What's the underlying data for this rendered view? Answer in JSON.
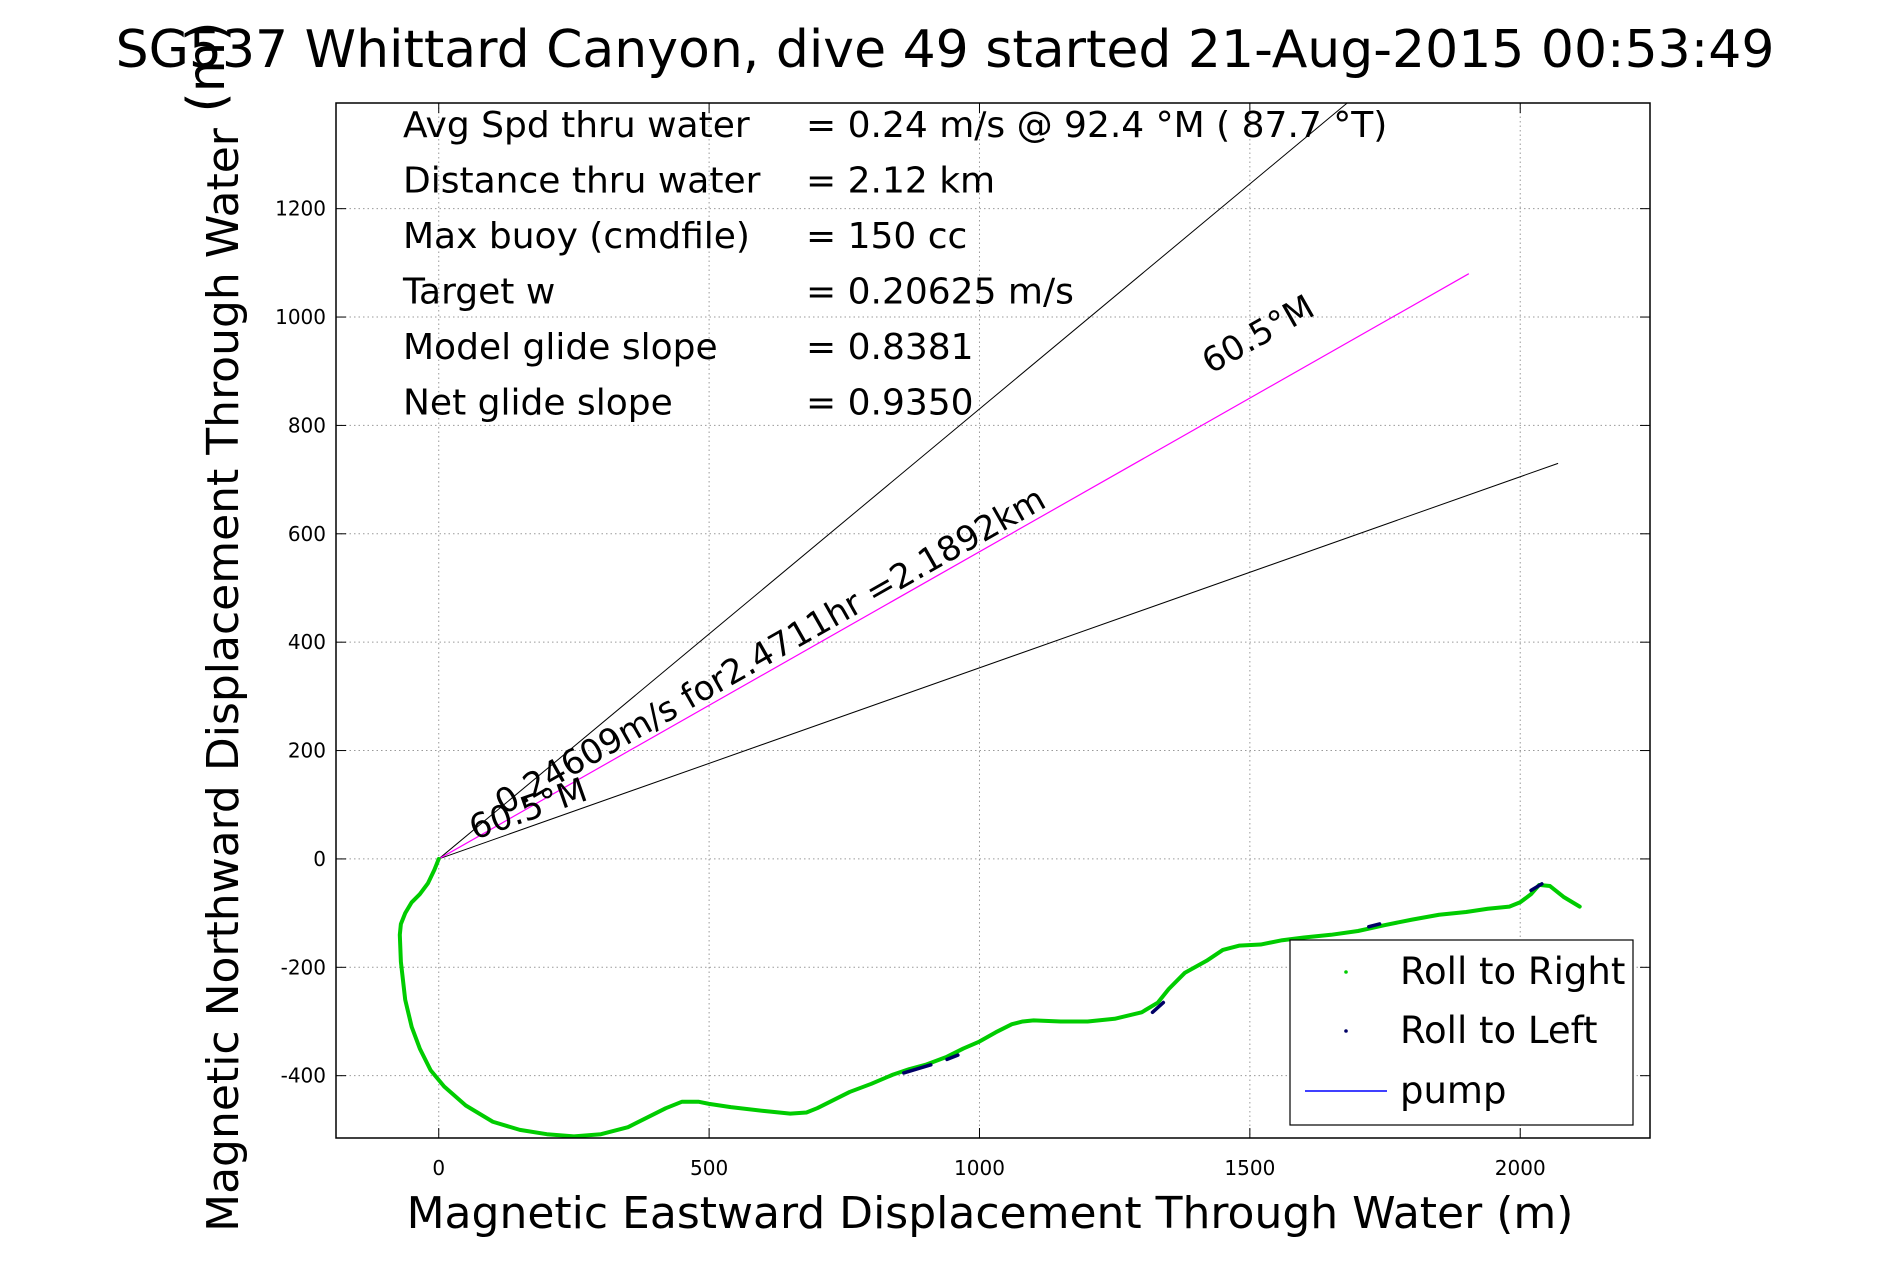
{
  "chart_data": {
    "type": "line",
    "title": "SG537 Whittard Canyon, dive 49 started 21-Aug-2015 00:53:49",
    "overlap_title_fragment": "(m)",
    "xlabel": "Magnetic Eastward Displacement Through Water (m)",
    "ylabel": "Magnetic Northward Displacement Through Water",
    "xlim": [
      -190,
      2240
    ],
    "ylim": [
      -515,
      1395
    ],
    "x_ticks": [
      0,
      500,
      1000,
      1500,
      2000
    ],
    "y_ticks": [
      -400,
      -200,
      0,
      200,
      400,
      600,
      800,
      1000,
      1200
    ],
    "x_tick_labels": [
      "0",
      "500",
      "1000",
      "1500",
      "2000"
    ],
    "y_tick_labels": [
      "-400",
      "-200",
      "0",
      "200",
      "400",
      "600",
      "800",
      "1000",
      "1200"
    ],
    "grid": true,
    "stats": [
      {
        "label": "Avg Spd thru water",
        "value": "=  0.24 m/s @  92.4 °M ( 87.7 °T)"
      },
      {
        "label": "Distance thru water",
        "value": "=  2.12 km"
      },
      {
        "label": "Max buoy (cmdfile)",
        "value": "= 150 cc"
      },
      {
        "label": "Target w",
        "value": "= 0.20625 m/s"
      },
      {
        "label": "Model glide slope",
        "value": "= 0.8381"
      },
      {
        "label": "Net glide slope",
        "value": "= 0.9350"
      }
    ],
    "annotations": {
      "heading_line_label": "0.24609m/s for2.4711hr =2.1892km",
      "cone_label_lower": "60.5°M",
      "cone_label_upper": "60.5°M"
    },
    "heading_line": {
      "x": [
        0,
        1905
      ],
      "y": [
        0,
        1080
      ],
      "color": "#ff00ff"
    },
    "cone_lines": [
      {
        "x": [
          0,
          1680
        ],
        "y": [
          0,
          1395
        ]
      },
      {
        "x": [
          0,
          2070
        ],
        "y": [
          0,
          730
        ]
      }
    ],
    "series": [
      {
        "name": "Roll to Right",
        "color": "#00cc00",
        "x": [
          0,
          -8,
          -20,
          -35,
          -50,
          -62,
          -70,
          -72,
          -70,
          -62,
          -50,
          -35,
          -15,
          10,
          50,
          100,
          150,
          200,
          250,
          300,
          350,
          390,
          420,
          450,
          480,
          500,
          540,
          600,
          650,
          680,
          700,
          730,
          760,
          800,
          840,
          870,
          900,
          940,
          970,
          1000,
          1030,
          1060,
          1080,
          1100,
          1150,
          1200,
          1250,
          1300,
          1330,
          1350,
          1380,
          1420,
          1450,
          1480,
          1520,
          1560,
          1600,
          1650,
          1700,
          1750,
          1800,
          1850,
          1900,
          1940,
          1980,
          2000,
          2020,
          2035,
          2055,
          2080,
          2110
        ],
        "y": [
          0,
          -20,
          -45,
          -65,
          -80,
          -100,
          -120,
          -140,
          -190,
          -260,
          -310,
          -350,
          -390,
          -420,
          -455,
          -485,
          -500,
          -508,
          -512,
          -508,
          -495,
          -475,
          -460,
          -448,
          -448,
          -452,
          -458,
          -465,
          -470,
          -468,
          -460,
          -445,
          -430,
          -415,
          -398,
          -388,
          -380,
          -365,
          -350,
          -337,
          -320,
          -305,
          -300,
          -298,
          -300,
          -300,
          -295,
          -283,
          -265,
          -240,
          -210,
          -188,
          -168,
          -160,
          -158,
          -150,
          -145,
          -140,
          -133,
          -122,
          -112,
          -103,
          -98,
          -92,
          -88,
          -80,
          -65,
          -48,
          -50,
          -70,
          -88
        ]
      },
      {
        "name": "Roll to Left",
        "color": "#000066",
        "segments": [
          {
            "x": [
              860,
              910
            ],
            "y": [
              -395,
              -380
            ]
          },
          {
            "x": [
              940,
              960
            ],
            "y": [
              -370,
              -362
            ]
          },
          {
            "x": [
              1320,
              1340
            ],
            "y": [
              -283,
              -265
            ]
          },
          {
            "x": [
              1720,
              1740
            ],
            "y": [
              -125,
              -120
            ]
          },
          {
            "x": [
              2020,
              2040
            ],
            "y": [
              -58,
              -46
            ]
          }
        ]
      },
      {
        "name": "pump",
        "color": "#0000ff"
      }
    ],
    "legend": {
      "placement": "bottom-right",
      "entries": [
        "Roll to Right",
        "Roll to Left",
        "pump"
      ]
    }
  }
}
